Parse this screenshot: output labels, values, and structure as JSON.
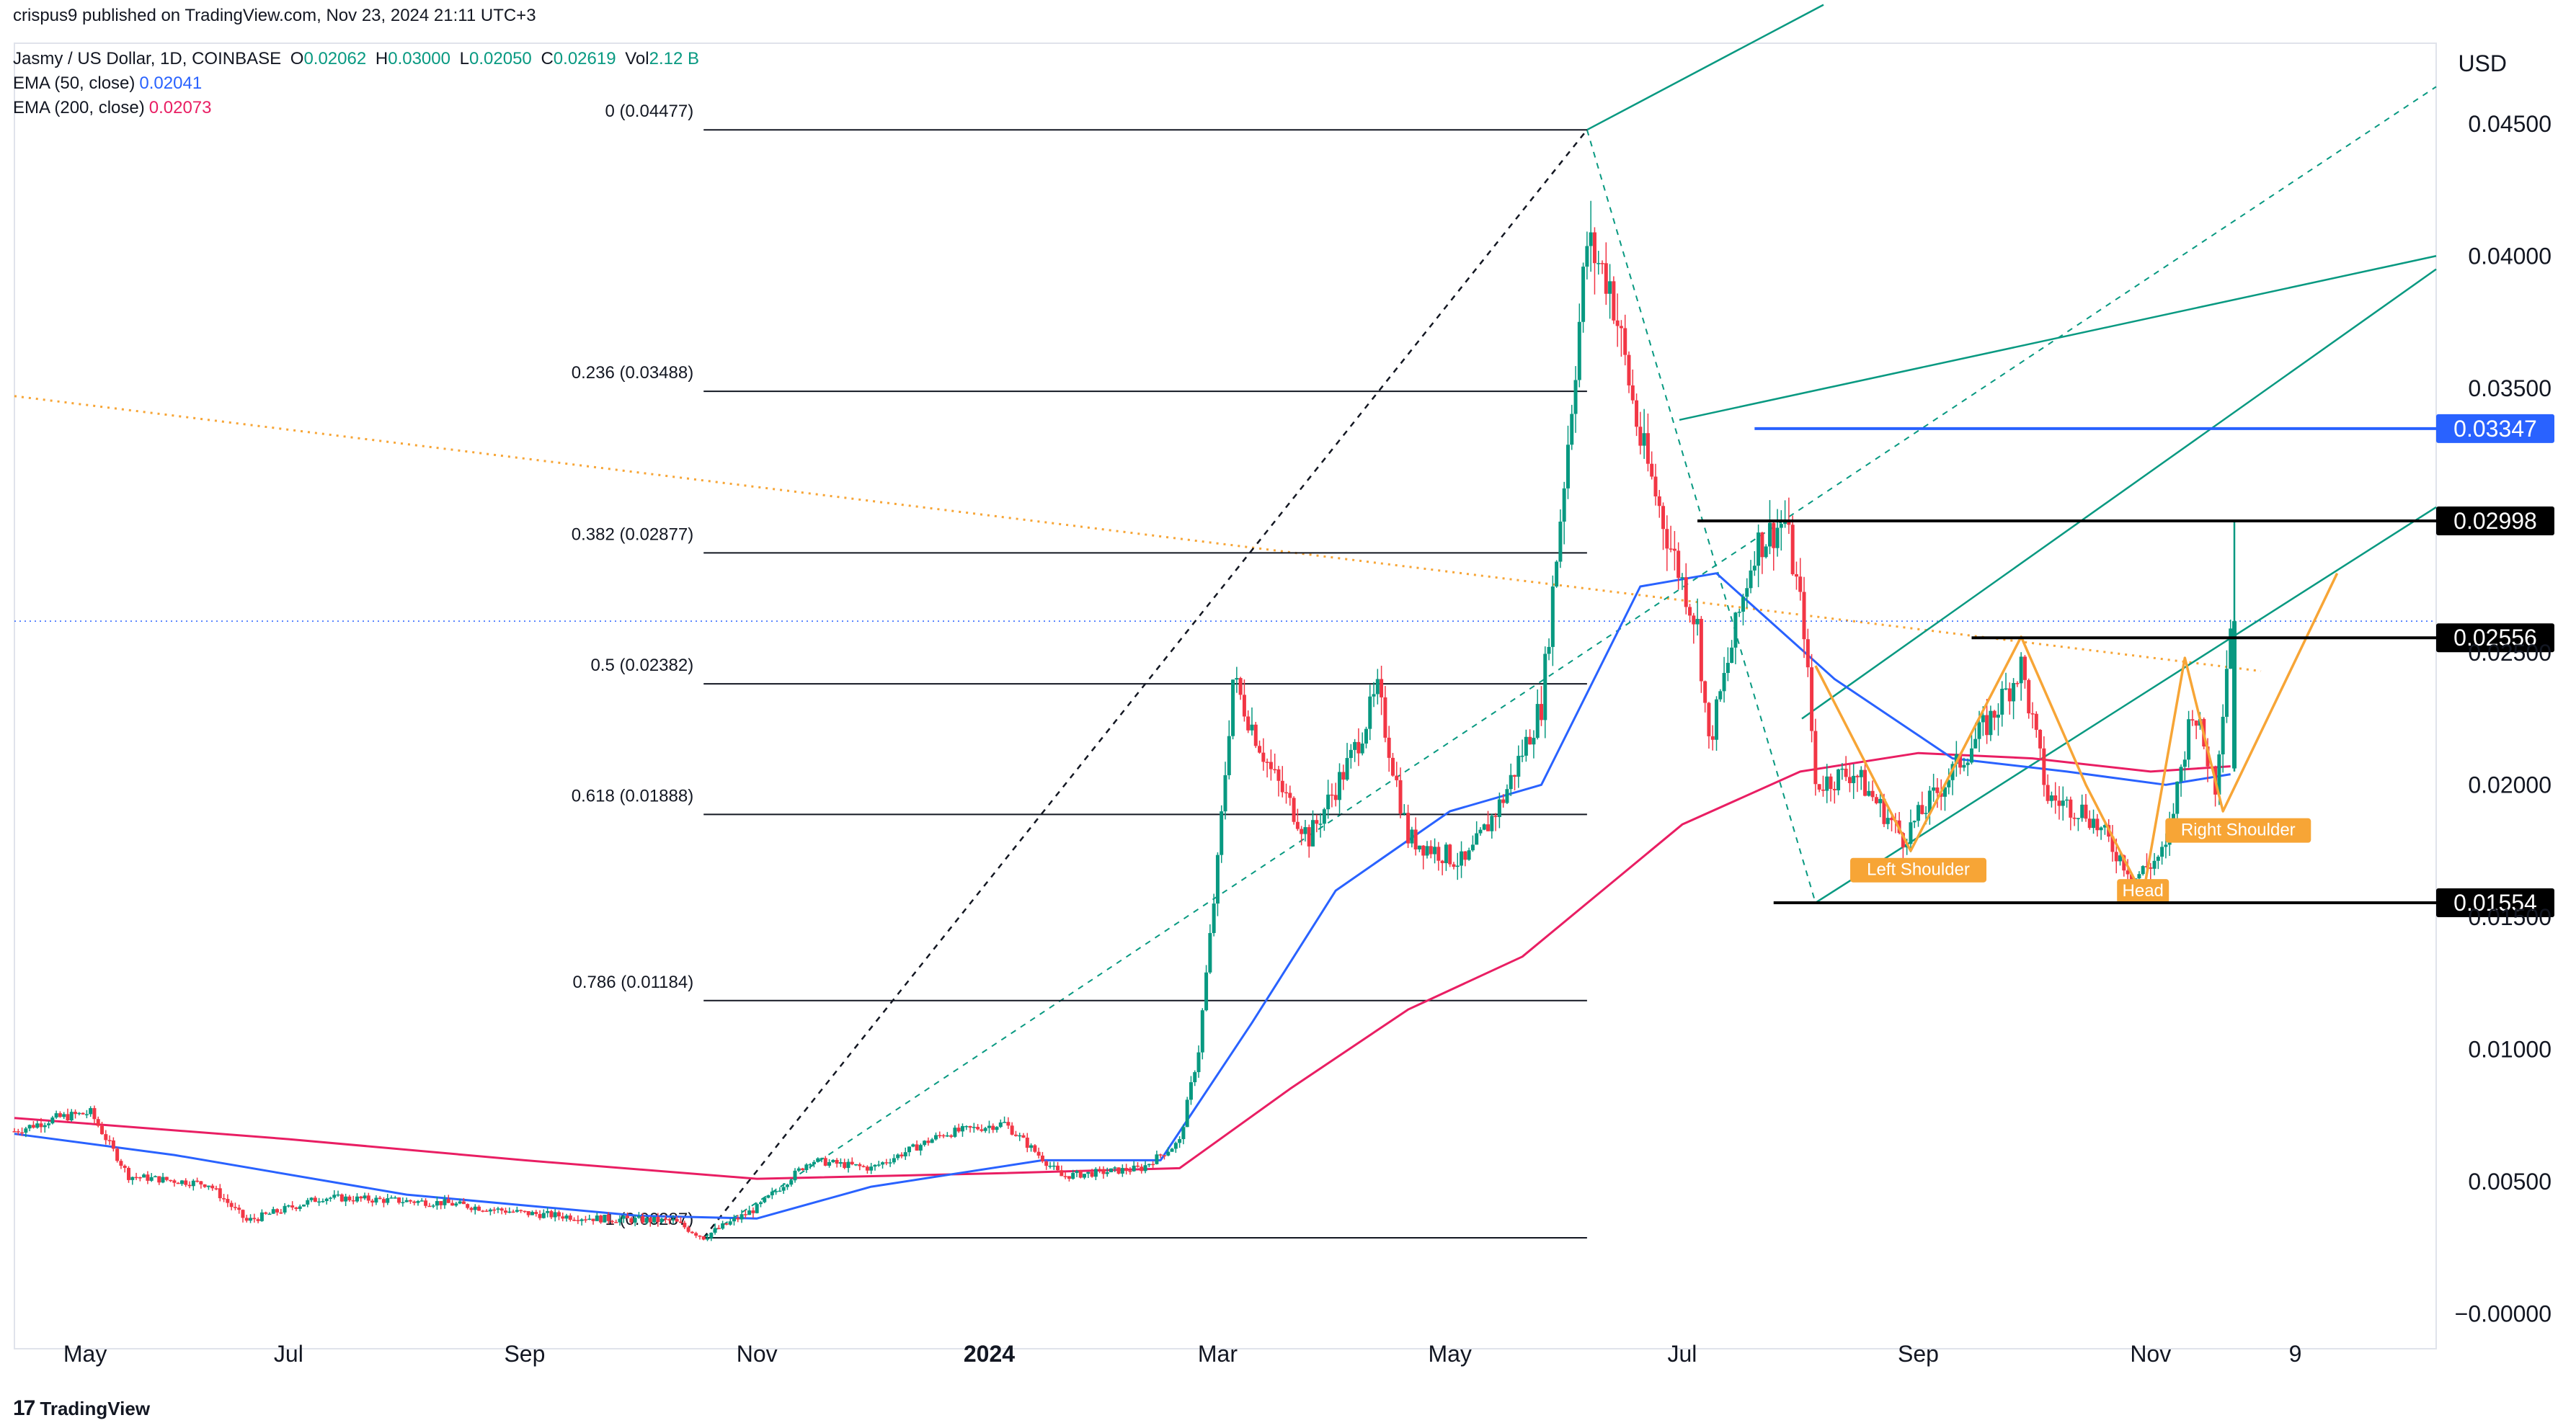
{
  "publisher_line": "crispus9 published on TradingView.com, Nov 23, 2024 21:11 UTC+3",
  "legend": {
    "symbol": "Jasmy / US Dollar, 1D, COINBASE",
    "o_label": "O",
    "o": "0.02062",
    "h_label": "H",
    "h": "0.03000",
    "l_label": "L",
    "l": "0.02050",
    "c_label": "C",
    "c": "0.02619",
    "vol_label": "Vol",
    "vol": "2.12 B",
    "ema50_label": "EMA (50, close)",
    "ema50": "0.02041",
    "ema200_label": "EMA (200, close)",
    "ema200": "0.02073"
  },
  "currency": "USD",
  "footer": {
    "logo": "17",
    "brand": "TradingView"
  },
  "colors": {
    "up": "#089981",
    "down": "#f23645",
    "ema50": "#2962ff",
    "ema200": "#e91e63",
    "pattern": "#f7a536",
    "fib_line": "#131722",
    "pitchfork": "#089981"
  },
  "chart_data": {
    "type": "candlestick",
    "title": "Jasmy / US Dollar, 1D, COINBASE",
    "ylim": [
      -0.001,
      0.0475
    ],
    "y_ticks": [
      "0.04500",
      "0.04000",
      "0.03500",
      "0.02500",
      "0.02000",
      "0.01500",
      "0.01000",
      "0.00500",
      "−0.00000"
    ],
    "y_tick_values": [
      0.045,
      0.04,
      0.035,
      0.025,
      0.02,
      0.015,
      0.01,
      0.005,
      0.0
    ],
    "x_ticks": [
      "May",
      "Jul",
      "Sep",
      "Nov",
      "2024",
      "Mar",
      "May",
      "Jul",
      "Sep",
      "Nov",
      "9"
    ],
    "x_tick_dates": [
      "2023-05-01",
      "2023-07-01",
      "2023-09-01",
      "2023-11-01",
      "2024-01-01",
      "2024-03-01",
      "2024-05-01",
      "2024-07-01",
      "2024-09-01",
      "2024-11-01",
      "2024-12-09"
    ],
    "x_range": [
      "2023-04-20",
      "2025-01-15"
    ],
    "price_path": [
      [
        "2023-04-20",
        0.0069
      ],
      [
        "2023-05-01",
        0.0074
      ],
      [
        "2023-05-10",
        0.0076
      ],
      [
        "2023-05-20",
        0.0052
      ],
      [
        "2023-06-10",
        0.0049
      ],
      [
        "2023-06-20",
        0.0035
      ],
      [
        "2023-07-10",
        0.0044
      ],
      [
        "2023-08-10",
        0.0042
      ],
      [
        "2023-09-01",
        0.0038
      ],
      [
        "2023-09-20",
        0.0036
      ],
      [
        "2023-10-10",
        0.0035
      ],
      [
        "2023-10-18",
        0.0029
      ],
      [
        "2023-11-01",
        0.004
      ],
      [
        "2023-11-15",
        0.0058
      ],
      [
        "2023-12-01",
        0.0055
      ],
      [
        "2023-12-20",
        0.0068
      ],
      [
        "2024-01-05",
        0.0072
      ],
      [
        "2024-01-20",
        0.0052
      ],
      [
        "2024-02-10",
        0.0055
      ],
      [
        "2024-02-20",
        0.0065
      ],
      [
        "2024-02-25",
        0.01
      ],
      [
        "2024-03-01",
        0.017
      ],
      [
        "2024-03-05",
        0.024
      ],
      [
        "2024-03-15",
        0.0205
      ],
      [
        "2024-03-25",
        0.018
      ],
      [
        "2024-04-05",
        0.021
      ],
      [
        "2024-04-12",
        0.0235
      ],
      [
        "2024-04-20",
        0.018
      ],
      [
        "2024-05-05",
        0.017
      ],
      [
        "2024-05-15",
        0.0195
      ],
      [
        "2024-05-25",
        0.023
      ],
      [
        "2024-06-01",
        0.033
      ],
      [
        "2024-06-06",
        0.0405
      ],
      [
        "2024-06-12",
        0.039
      ],
      [
        "2024-06-20",
        0.033
      ],
      [
        "2024-06-28",
        0.029
      ],
      [
        "2024-07-05",
        0.026
      ],
      [
        "2024-07-08",
        0.0215
      ],
      [
        "2024-07-20",
        0.029
      ],
      [
        "2024-07-28",
        0.03
      ],
      [
        "2024-08-02",
        0.026
      ],
      [
        "2024-08-05",
        0.02
      ],
      [
        "2024-08-15",
        0.0205
      ],
      [
        "2024-08-28",
        0.018
      ],
      [
        "2024-09-10",
        0.0205
      ],
      [
        "2024-09-20",
        0.0225
      ],
      [
        "2024-09-28",
        0.0245
      ],
      [
        "2024-10-05",
        0.0195
      ],
      [
        "2024-10-15",
        0.019
      ],
      [
        "2024-10-28",
        0.0165
      ],
      [
        "2024-11-05",
        0.0175
      ],
      [
        "2024-11-12",
        0.023
      ],
      [
        "2024-11-18",
        0.02
      ],
      [
        "2024-11-22",
        0.0262
      ]
    ],
    "ema50_path": [
      [
        "2023-04-20",
        0.0068
      ],
      [
        "2023-06-01",
        0.006
      ],
      [
        "2023-08-01",
        0.0045
      ],
      [
        "2023-10-01",
        0.0037
      ],
      [
        "2023-11-01",
        0.0036
      ],
      [
        "2023-12-01",
        0.0048
      ],
      [
        "2024-01-15",
        0.0058
      ],
      [
        "2024-02-15",
        0.0058
      ],
      [
        "2024-03-10",
        0.011
      ],
      [
        "2024-04-01",
        0.016
      ],
      [
        "2024-05-01",
        0.019
      ],
      [
        "2024-05-25",
        0.02
      ],
      [
        "2024-06-20",
        0.0275
      ],
      [
        "2024-07-10",
        0.028
      ],
      [
        "2024-08-10",
        0.024
      ],
      [
        "2024-09-10",
        0.021
      ],
      [
        "2024-10-10",
        0.0205
      ],
      [
        "2024-11-05",
        0.02
      ],
      [
        "2024-11-22",
        0.0204
      ]
    ],
    "ema200_path": [
      [
        "2023-04-20",
        0.0074
      ],
      [
        "2023-07-01",
        0.0066
      ],
      [
        "2023-09-01",
        0.0058
      ],
      [
        "2023-11-01",
        0.0051
      ],
      [
        "2024-01-01",
        0.0053
      ],
      [
        "2024-02-20",
        0.0055
      ],
      [
        "2024-03-20",
        0.0085
      ],
      [
        "2024-04-20",
        0.0115
      ],
      [
        "2024-05-20",
        0.0135
      ],
      [
        "2024-06-10",
        0.016
      ],
      [
        "2024-07-01",
        0.0185
      ],
      [
        "2024-08-01",
        0.0205
      ],
      [
        "2024-09-01",
        0.0212
      ],
      [
        "2024-10-01",
        0.021
      ],
      [
        "2024-11-01",
        0.0205
      ],
      [
        "2024-11-22",
        0.0207
      ]
    ],
    "fib_levels": [
      {
        "label": "0 (0.04477)",
        "value": 0.04477
      },
      {
        "label": "0.236 (0.03488)",
        "value": 0.03488
      },
      {
        "label": "0.382 (0.02877)",
        "value": 0.02877
      },
      {
        "label": "0.5 (0.02382)",
        "value": 0.02382
      },
      {
        "label": "0.618 (0.01888)",
        "value": 0.01888
      },
      {
        "label": "0.786 (0.01184)",
        "value": 0.01184
      },
      {
        "label": "1 (0.00287)",
        "value": 0.00287
      }
    ],
    "fib_range": [
      "2023-10-18",
      "2024-06-06"
    ],
    "horizontal_levels": [
      {
        "label": "0.03347",
        "value": 0.03347,
        "color": "#2962ff",
        "from": "2024-07-20"
      },
      {
        "label": "0.02998",
        "value": 0.02998,
        "color": "#000000",
        "from": "2024-07-05"
      },
      {
        "label": "0.02556",
        "value": 0.02556,
        "color": "#000000",
        "from": "2024-09-15"
      },
      {
        "label": "0.01554",
        "value": 0.01554,
        "color": "#000000",
        "from": "2024-07-25"
      }
    ],
    "current_price_line": 0.02619,
    "pattern_path": [
      [
        "2024-08-05",
        0.0245
      ],
      [
        "2024-08-30",
        0.0175
      ],
      [
        "2024-09-28",
        0.0256
      ],
      [
        "2024-10-15",
        0.02
      ],
      [
        "2024-10-30",
        0.0158
      ],
      [
        "2024-11-10",
        0.0248
      ],
      [
        "2024-11-20",
        0.019
      ],
      [
        "2024-12-20",
        0.028
      ]
    ],
    "annotations": [
      {
        "text": "Left Shoulder",
        "date": "2024-09-01",
        "value": 0.0168
      },
      {
        "text": "Head",
        "date": "2024-10-30",
        "value": 0.016
      },
      {
        "text": "Right Shoulder",
        "date": "2024-11-24",
        "value": 0.0183
      }
    ]
  }
}
